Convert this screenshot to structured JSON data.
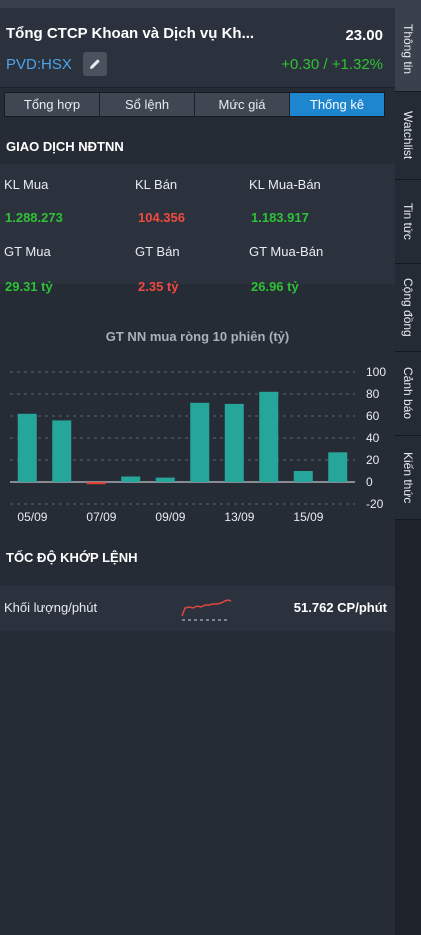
{
  "header": {
    "title": "Tổng CTCP Khoan và Dịch vụ Kh...",
    "price": "23.00",
    "symbol": "PVD:HSX",
    "change": "+0.30 / +1.32%"
  },
  "tabs": [
    {
      "label": "Tổng hợp",
      "active": false
    },
    {
      "label": "Sổ lệnh",
      "active": false
    },
    {
      "label": "Mức giá",
      "active": false
    },
    {
      "label": "Thống kê",
      "active": true
    }
  ],
  "foreign_trading": {
    "title": "GIAO DỊCH NĐTNN",
    "kl_buy_label": "KL Mua",
    "kl_buy": "1.288.273",
    "kl_sell_label": "KL Bán",
    "kl_sell": "104.356",
    "kl_net_label": "KL Mua-Bán",
    "kl_net": "1.183.917",
    "gt_buy_label": "GT Mua",
    "gt_buy": "29.31 tỷ",
    "gt_sell_label": "GT Bán",
    "gt_sell": "2.35 tỷ",
    "gt_net_label": "GT Mua-Bán",
    "gt_net": "26.96 tỷ"
  },
  "chart_data": {
    "type": "bar",
    "title": "GT NN mua ròng 10 phiên (tỷ)",
    "x_tick_labels": [
      "05/09",
      "07/09",
      "09/09",
      "13/09",
      "15/09"
    ],
    "values": [
      62,
      56,
      -2,
      5,
      4,
      72,
      71,
      82,
      10,
      27
    ],
    "ylim": [
      -20,
      100
    ],
    "yticks": [
      100,
      80,
      60,
      40,
      20,
      0,
      -20
    ],
    "bar_color_positive": "#26a69a",
    "bar_color_negative": "#e0473c",
    "grid": "dashed horizontal"
  },
  "speed": {
    "title": "TỐC ĐỘ KHỚP LỆNH",
    "volume_label": "Khối lượng/phút",
    "volume_value": "51.762 CP/phút"
  },
  "sidebar": [
    {
      "label": "Thông tin",
      "active": true
    },
    {
      "label": "Watchlist",
      "active": false
    },
    {
      "label": "Tin tức",
      "active": false
    },
    {
      "label": "Cộng đồng",
      "active": false
    },
    {
      "label": "Cảnh báo",
      "active": false
    },
    {
      "label": "Kiến thức",
      "active": false
    }
  ]
}
